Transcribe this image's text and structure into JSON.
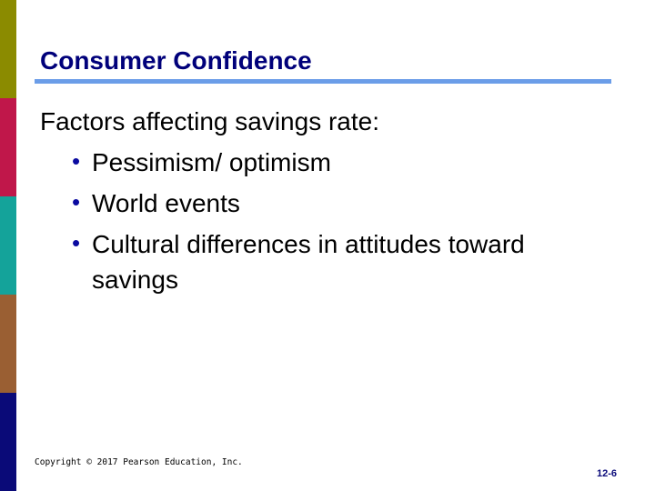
{
  "colors": {
    "side_bands": [
      "#8b8b00",
      "#c0174a",
      "#14a39a",
      "#9a5f33",
      "#0a0a78"
    ],
    "title_color": "#00007a",
    "rule_color": "#6b9de8",
    "bullet_color": "#0a0aa0",
    "page_num_color": "#0a0a7a"
  },
  "slide": {
    "title": "Consumer Confidence",
    "intro": "Factors affecting savings rate:",
    "bullets": [
      "Pessimism/ optimism",
      "World events",
      "Cultural differences in attitudes toward savings"
    ],
    "copyright": "Copyright © 2017 Pearson Education, Inc.",
    "page_number": "12-6"
  }
}
